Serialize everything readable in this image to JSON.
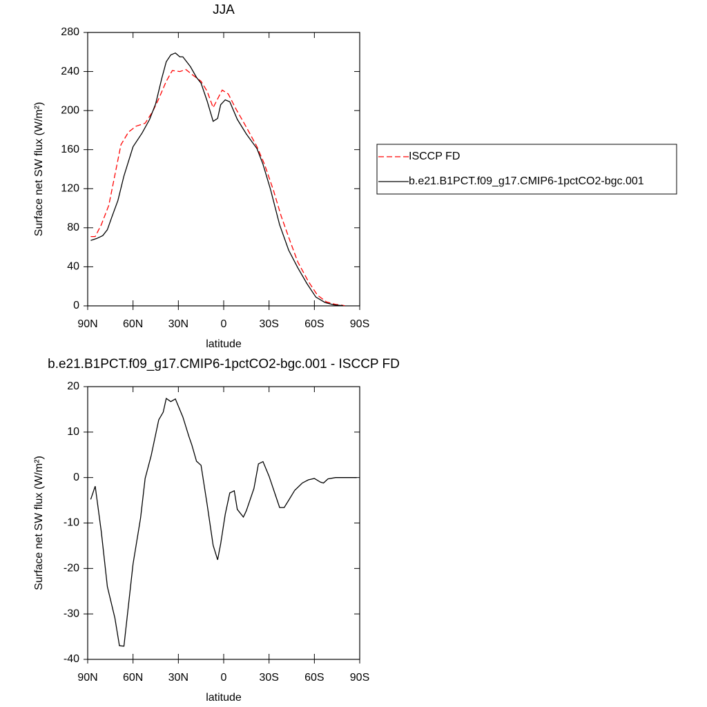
{
  "chart_data": [
    {
      "type": "line",
      "title": "JJA",
      "xlabel": "latitude",
      "ylabel": "Surface net SW flux (W/m²)",
      "xlim": [
        90,
        -90
      ],
      "xticks": [
        {
          "value": 90,
          "label": "90N"
        },
        {
          "value": 60,
          "label": "60N"
        },
        {
          "value": 30,
          "label": "30N"
        },
        0,
        {
          "value": -30,
          "label": "30S"
        },
        {
          "value": -60,
          "label": "60S"
        },
        {
          "value": -90,
          "label": "90S"
        }
      ],
      "ylim": [
        0,
        280
      ],
      "yticks": [
        0,
        40,
        80,
        120,
        160,
        200,
        240,
        280
      ],
      "legend": "right",
      "series": [
        {
          "name": "ISCCP FD",
          "color": "#ff0000",
          "style": "dashed",
          "x": [
            88,
            85,
            81,
            76,
            72,
            68,
            63,
            58,
            52,
            47,
            43,
            38,
            34,
            29,
            25,
            21,
            15,
            11,
            7,
            1,
            -3,
            -8,
            -15,
            -22,
            -27,
            -33,
            -38,
            -44,
            -49,
            -56,
            -62,
            -68,
            -74,
            -80
          ],
          "values": [
            71,
            71,
            83,
            103,
            134,
            165,
            178,
            184,
            187,
            199,
            212,
            230,
            241,
            240,
            242,
            237,
            230,
            220,
            203,
            221,
            217,
            202,
            183,
            163,
            145,
            118,
            92,
            66,
            45,
            25,
            11,
            4,
            1.5,
            0.3
          ]
        },
        {
          "name": "b.e21.B1PCT.f09_g17.CMIP6-1pctCO2-bgc.001",
          "color": "#000000",
          "style": "solid",
          "x": [
            88,
            84,
            80,
            77,
            74,
            70,
            66,
            60,
            54,
            49,
            45,
            41,
            38,
            35,
            32,
            29,
            27,
            22,
            18,
            15,
            11,
            7,
            4,
            2,
            -1,
            -4,
            -9,
            -15,
            -22,
            -26,
            -31,
            -37,
            -43,
            -49,
            -55,
            -61,
            -67,
            -73,
            -79
          ],
          "values": [
            67,
            69,
            72,
            78,
            91,
            108,
            133,
            163,
            177,
            191,
            207,
            233,
            250,
            257,
            259,
            255,
            255,
            245,
            234,
            228,
            210,
            189,
            192,
            206,
            211,
            209,
            191,
            176,
            161,
            145,
            119,
            83,
            57,
            39,
            23,
            9,
            3.5,
            1,
            0.3
          ]
        }
      ]
    },
    {
      "type": "line",
      "title": "b.e21.B1PCT.f09_g17.CMIP6-1pctCO2-bgc.001 - ISCCP FD",
      "xlabel": "latitude",
      "ylabel": "Surface net SW flux (W/m²)",
      "xlim": [
        90,
        -90
      ],
      "xticks": [
        {
          "value": 90,
          "label": "90N"
        },
        {
          "value": 60,
          "label": "60N"
        },
        {
          "value": 30,
          "label": "30N"
        },
        0,
        {
          "value": -30,
          "label": "30S"
        },
        {
          "value": -60,
          "label": "60S"
        },
        {
          "value": -90,
          "label": "90S"
        }
      ],
      "ylim": [
        -40,
        20
      ],
      "yticks": [
        -40,
        -30,
        -20,
        -10,
        0,
        10,
        20
      ],
      "series": [
        {
          "color": "#000000",
          "style": "solid",
          "x": [
            88,
            85,
            81,
            77,
            72,
            69,
            66,
            60,
            55,
            52,
            48,
            43,
            40,
            38,
            35,
            32,
            27,
            23,
            21,
            18,
            15,
            11,
            7,
            4,
            2,
            -1,
            -4,
            -7,
            -9,
            -13,
            -15,
            -20,
            -23,
            -26,
            -30,
            -35,
            -37,
            -40,
            -43,
            -47,
            -52,
            -56,
            -60,
            -64,
            -66,
            -69,
            -74,
            -88
          ],
          "values": [
            -4.8,
            -1.9,
            -11.9,
            -24,
            -30.9,
            -37,
            -37.1,
            -19,
            -8.9,
            -0.2,
            4.8,
            12.7,
            14.4,
            17.4,
            16.7,
            17.3,
            13.3,
            9,
            7.1,
            3.6,
            2.7,
            -5.8,
            -14.9,
            -18.1,
            -14.6,
            -8.1,
            -3.4,
            -2.9,
            -7,
            -8.7,
            -7.3,
            -2.4,
            3,
            3.5,
            0.3,
            -4.6,
            -6.6,
            -6.6,
            -5,
            -2.8,
            -1.2,
            -0.5,
            -0.2,
            -1,
            -1.2,
            -0.3,
            0,
            0
          ]
        }
      ]
    }
  ]
}
